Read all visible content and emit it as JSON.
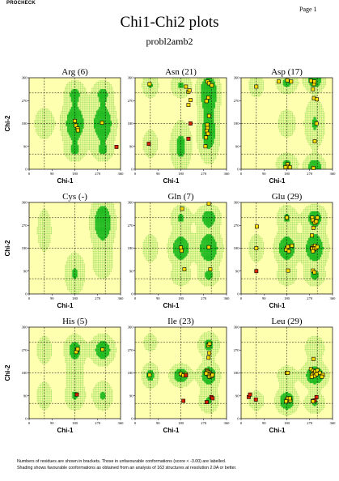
{
  "header": {
    "program": "PROCHECK",
    "page": "Page  1"
  },
  "title": "Chi1-Chi2 plots",
  "subtitle": "probl2amb2",
  "footer": [
    "Numbers of residues are shown in brackets. Those in unfavourable conformations (score < -3.00) are labelled.",
    "Shading shows favourable conformations as obtained from an analysis of 163 structures at resolution 2.0A or better."
  ],
  "colors": {
    "panel_bg": "#ffffb0",
    "dense": "#22bb22",
    "sparse": "#99dd55",
    "point_ok": "#ffdd00",
    "point_bad": "#dd2200"
  },
  "chart_data": [
    {
      "type": "scatter",
      "title": "Arg (6)",
      "xlabel": "Chi-1",
      "ylabel": "Chi-2",
      "xlim": [
        0,
        360
      ],
      "ylim": [
        0,
        360
      ],
      "xticks": [
        0,
        90,
        180,
        270,
        360
      ],
      "yticks": [
        0,
        90,
        180,
        270,
        360
      ],
      "points": [
        [
          180,
          190,
          "ok"
        ],
        [
          184,
          172,
          "ok"
        ],
        [
          191,
          160,
          "ok"
        ],
        [
          192,
          153,
          "ok"
        ],
        [
          287,
          183,
          "ok"
        ],
        [
          344,
          88,
          "bad"
        ]
      ]
    },
    {
      "type": "scatter",
      "title": "Asn (21)",
      "xlabel": "Chi-1",
      "ylabel": "Chi-2",
      "xlim": [
        0,
        360
      ],
      "ylim": [
        0,
        360
      ],
      "xticks": [
        0,
        90,
        180,
        270,
        360
      ],
      "yticks": [
        0,
        90,
        180,
        270,
        360
      ],
      "points": [
        [
          57,
          335,
          "ok"
        ],
        [
          54,
          100,
          "bad"
        ],
        [
          200,
          325,
          "ok"
        ],
        [
          210,
          305,
          "ok"
        ],
        [
          214,
          310,
          "ok"
        ],
        [
          210,
          253,
          "ok"
        ],
        [
          218,
          272,
          "ok"
        ],
        [
          218,
          180,
          "bad"
        ],
        [
          210,
          120,
          "bad"
        ],
        [
          285,
          345,
          "ok"
        ],
        [
          291,
          338,
          "ok"
        ],
        [
          302,
          330,
          "ok"
        ],
        [
          288,
          282,
          "ok"
        ],
        [
          281,
          268,
          "ok"
        ],
        [
          284,
          175,
          "ok"
        ],
        [
          285,
          162,
          "ok"
        ],
        [
          282,
          150,
          "ok"
        ],
        [
          287,
          140,
          "ok"
        ],
        [
          279,
          125,
          "ok"
        ],
        [
          277,
          90,
          "ok"
        ],
        [
          291,
          210,
          "ok"
        ]
      ]
    },
    {
      "type": "scatter",
      "title": "Asp (17)",
      "xlabel": "Chi-1",
      "ylabel": "Chi-2",
      "xlim": [
        0,
        360
      ],
      "ylim": [
        0,
        360
      ],
      "xticks": [
        0,
        90,
        180,
        270,
        360
      ],
      "yticks": [
        0,
        90,
        180,
        270,
        360
      ],
      "points": [
        [
          60,
          325,
          "ok"
        ],
        [
          148,
          345,
          "ok"
        ],
        [
          182,
          350,
          "ok"
        ],
        [
          197,
          345,
          "ok"
        ],
        [
          275,
          348,
          "ok"
        ],
        [
          287,
          335,
          "ok"
        ],
        [
          289,
          345,
          "ok"
        ],
        [
          283,
          315,
          "ok"
        ],
        [
          287,
          280,
          "ok"
        ],
        [
          298,
          275,
          "ok"
        ],
        [
          297,
          180,
          "ok"
        ],
        [
          290,
          110,
          "ok"
        ],
        [
          183,
          20,
          "ok"
        ],
        [
          183,
          12,
          "ok"
        ],
        [
          192,
          8,
          "ok"
        ],
        [
          175,
          8,
          "ok"
        ],
        [
          285,
          5,
          "ok"
        ]
      ]
    },
    {
      "type": "scatter",
      "title": "Cys (-)",
      "xlabel": "Chi-1",
      "ylabel": "Chi-2",
      "xlim": [
        0,
        360
      ],
      "ylim": [
        0,
        360
      ],
      "xticks": [
        0,
        90,
        180,
        270,
        360
      ],
      "yticks": [
        0,
        90,
        180,
        270,
        360
      ],
      "points": []
    },
    {
      "type": "scatter",
      "title": "Gln (7)",
      "xlabel": "Chi-1",
      "ylabel": "Chi-2",
      "xlim": [
        0,
        360
      ],
      "ylim": [
        0,
        360
      ],
      "xticks": [
        0,
        90,
        180,
        270,
        360
      ],
      "yticks": [
        0,
        90,
        180,
        270,
        360
      ],
      "points": [
        [
          185,
          335,
          "ok"
        ],
        [
          180,
          182,
          "ok"
        ],
        [
          183,
          170,
          "ok"
        ],
        [
          194,
          97,
          "ok"
        ],
        [
          290,
          355,
          "ok"
        ],
        [
          290,
          184,
          "ok"
        ],
        [
          296,
          97,
          "ok"
        ]
      ]
    },
    {
      "type": "scatter",
      "title": "Glu (29)",
      "xlabel": "Chi-1",
      "ylabel": "Chi-2",
      "xlim": [
        0,
        360
      ],
      "ylim": [
        0,
        360
      ],
      "xticks": [
        0,
        90,
        180,
        270,
        360
      ],
      "yticks": [
        0,
        90,
        180,
        270,
        360
      ],
      "points": [
        [
          62,
          265,
          "ok"
        ],
        [
          60,
          180,
          "ok"
        ],
        [
          60,
          90,
          "bad"
        ],
        [
          180,
          300,
          "ok"
        ],
        [
          180,
          180,
          "ok"
        ],
        [
          184,
          186,
          "ok"
        ],
        [
          178,
          174,
          "ok"
        ],
        [
          188,
          168,
          "ok"
        ],
        [
          185,
          92,
          "ok"
        ],
        [
          280,
          300,
          "ok"
        ],
        [
          282,
          290,
          "ok"
        ],
        [
          290,
          280,
          "ok"
        ],
        [
          296,
          285,
          "ok"
        ],
        [
          300,
          300,
          "ok"
        ],
        [
          285,
          260,
          "ok"
        ],
        [
          279,
          230,
          "ok"
        ],
        [
          283,
          186,
          "ok"
        ],
        [
          279,
          180,
          "ok"
        ],
        [
          288,
          182,
          "ok"
        ],
        [
          285,
          172,
          "ok"
        ],
        [
          291,
          190,
          "ok"
        ],
        [
          283,
          92,
          "ok"
        ],
        [
          289,
          85,
          "ok"
        ],
        [
          200,
          190,
          "ok"
        ],
        [
          280,
          178,
          "ok"
        ],
        [
          289,
          178,
          "ok"
        ],
        [
          283,
          168,
          "ok"
        ],
        [
          294,
          180,
          "ok"
        ],
        [
          300,
          185,
          "ok"
        ]
      ]
    },
    {
      "type": "scatter",
      "title": "His (5)",
      "xlabel": "Chi-1",
      "ylabel": "Chi-2",
      "xlim": [
        0,
        360
      ],
      "ylim": [
        0,
        360
      ],
      "xticks": [
        0,
        90,
        180,
        270,
        360
      ],
      "yticks": [
        0,
        90,
        180,
        270,
        360
      ],
      "points": [
        [
          188,
          268,
          "ok"
        ],
        [
          185,
          262,
          "ok"
        ],
        [
          191,
          274,
          "ok"
        ],
        [
          188,
          95,
          "bad"
        ],
        [
          289,
          272,
          "ok"
        ]
      ]
    },
    {
      "type": "scatter",
      "title": "Ile (23)",
      "xlabel": "Chi-1",
      "ylabel": "Chi-2",
      "xlim": [
        0,
        360
      ],
      "ylim": [
        0,
        360
      ],
      "xticks": [
        0,
        90,
        180,
        270,
        360
      ],
      "yticks": [
        0,
        90,
        180,
        270,
        360
      ],
      "points": [
        [
          57,
          172,
          "ok"
        ],
        [
          180,
          176,
          "ok"
        ],
        [
          190,
          170,
          "ok"
        ],
        [
          200,
          175,
          "ok"
        ],
        [
          200,
          170,
          "bad"
        ],
        [
          190,
          70,
          "bad"
        ],
        [
          288,
          288,
          "ok"
        ],
        [
          293,
          295,
          "ok"
        ],
        [
          292,
          258,
          "ok"
        ],
        [
          289,
          240,
          "ok"
        ],
        [
          283,
          190,
          "ok"
        ],
        [
          285,
          186,
          "ok"
        ],
        [
          289,
          182,
          "ok"
        ],
        [
          294,
          178,
          "ok"
        ],
        [
          297,
          174,
          "ok"
        ],
        [
          288,
          172,
          "ok"
        ],
        [
          293,
          165,
          "ok"
        ],
        [
          300,
          168,
          "ok"
        ],
        [
          305,
          172,
          "ok"
        ],
        [
          280,
          178,
          "ok"
        ],
        [
          282,
          65,
          "bad"
        ],
        [
          300,
          85,
          "bad"
        ],
        [
          305,
          80,
          "bad"
        ]
      ]
    },
    {
      "type": "scatter",
      "title": "Leu (29)",
      "xlabel": "Chi-1",
      "ylabel": "Chi-2",
      "xlim": [
        0,
        360
      ],
      "ylim": [
        0,
        360
      ],
      "xticks": [
        0,
        90,
        180,
        270,
        360
      ],
      "yticks": [
        0,
        90,
        180,
        270,
        360
      ],
      "points": [
        [
          30,
          85,
          "bad"
        ],
        [
          35,
          95,
          "bad"
        ],
        [
          58,
          75,
          "bad"
        ],
        [
          180,
          180,
          "ok"
        ],
        [
          184,
          180,
          "ok"
        ],
        [
          180,
          75,
          "ok"
        ],
        [
          184,
          70,
          "ok"
        ],
        [
          190,
          75,
          "ok"
        ],
        [
          194,
          72,
          "ok"
        ],
        [
          185,
          80,
          "ok"
        ],
        [
          177,
          68,
          "ok"
        ],
        [
          192,
          80,
          "ok"
        ],
        [
          275,
          195,
          "ok"
        ],
        [
          283,
          188,
          "ok"
        ],
        [
          288,
          180,
          "ok"
        ],
        [
          292,
          185,
          "ok"
        ],
        [
          300,
          190,
          "ok"
        ],
        [
          310,
          180,
          "ok"
        ],
        [
          322,
          172,
          "ok"
        ],
        [
          318,
          165,
          "ok"
        ],
        [
          280,
          172,
          "ok"
        ],
        [
          290,
          168,
          "ok"
        ],
        [
          297,
          175,
          "ok"
        ],
        [
          285,
          235,
          "ok"
        ],
        [
          278,
          165,
          "ok"
        ],
        [
          282,
          70,
          "ok"
        ],
        [
          290,
          72,
          "bad"
        ],
        [
          283,
          68,
          "ok"
        ],
        [
          297,
          85,
          "bad"
        ]
      ]
    }
  ]
}
